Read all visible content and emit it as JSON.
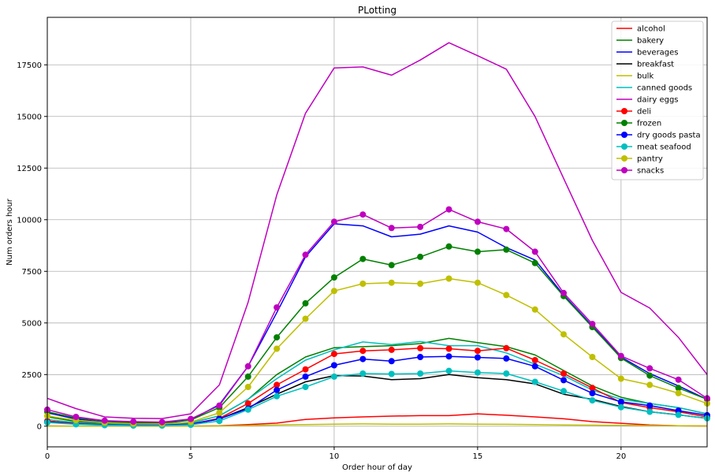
{
  "chart_data": {
    "type": "line",
    "title": "PLotting",
    "xlabel": "Order hour of day",
    "ylabel": "Num orders hour",
    "xlim": [
      0,
      23
    ],
    "ylim": [
      -1000,
      19800
    ],
    "x": [
      0,
      1,
      2,
      3,
      4,
      5,
      6,
      7,
      8,
      9,
      10,
      11,
      12,
      13,
      14,
      15,
      16,
      17,
      18,
      19,
      20,
      21,
      22,
      23
    ],
    "x_ticks": [
      0,
      5,
      10,
      15,
      20
    ],
    "x_tick_labels": [
      "0",
      "5",
      "10",
      "15",
      "20"
    ],
    "y_ticks": [
      0,
      2500,
      5000,
      7500,
      10000,
      12500,
      15000,
      17500
    ],
    "y_tick_labels": [
      "0",
      "2500",
      "5000",
      "7500",
      "10000",
      "12500",
      "15000",
      "17500"
    ],
    "grid": true,
    "legend_position": "top-right",
    "series": [
      {
        "name": "alcohol",
        "color": "#ff0000",
        "marker": false,
        "values": [
          10,
          5,
          3,
          2,
          2,
          5,
          20,
          80,
          150,
          330,
          400,
          450,
          490,
          510,
          510,
          600,
          530,
          450,
          360,
          220,
          140,
          60,
          20,
          10
        ]
      },
      {
        "name": "bakery",
        "color": "#008000",
        "marker": false,
        "values": [
          450,
          230,
          130,
          100,
          90,
          160,
          500,
          1300,
          2500,
          3350,
          3800,
          3850,
          3900,
          4000,
          4250,
          4050,
          3850,
          3450,
          2700,
          1950,
          1400,
          1100,
          900,
          600
        ]
      },
      {
        "name": "beverages",
        "color": "#0000ff",
        "marker": false,
        "values": [
          650,
          350,
          200,
          140,
          130,
          300,
          1050,
          2900,
          5500,
          8200,
          9800,
          9700,
          9170,
          9300,
          9700,
          9400,
          8650,
          8050,
          6350,
          4850,
          3350,
          2550,
          1950,
          1300
        ]
      },
      {
        "name": "breakfast",
        "color": "#000000",
        "marker": false,
        "values": [
          250,
          130,
          70,
          50,
          50,
          100,
          350,
          900,
          1550,
          2150,
          2450,
          2430,
          2250,
          2300,
          2500,
          2350,
          2250,
          2050,
          1550,
          1300,
          950,
          700,
          550,
          380
        ]
      },
      {
        "name": "bulk",
        "color": "#bfbf00",
        "marker": false,
        "values": [
          5,
          3,
          2,
          1,
          1,
          3,
          10,
          30,
          60,
          80,
          100,
          110,
          100,
          100,
          110,
          100,
          90,
          80,
          60,
          50,
          40,
          30,
          20,
          10
        ]
      },
      {
        "name": "canned goods",
        "color": "#00bfbf",
        "marker": false,
        "values": [
          330,
          170,
          100,
          80,
          70,
          150,
          500,
          1300,
          2300,
          3200,
          3700,
          4080,
          3950,
          4100,
          3900,
          3900,
          3550,
          3000,
          2450,
          1750,
          1300,
          1100,
          900,
          600
        ]
      },
      {
        "name": "dairy eggs",
        "color": "#bf00bf",
        "marker": false,
        "values": [
          1350,
          850,
          450,
          380,
          370,
          600,
          2000,
          6000,
          11200,
          15150,
          17350,
          17400,
          17000,
          17730,
          18570,
          17940,
          17290,
          15000,
          12000,
          9000,
          6480,
          5720,
          4300,
          2500
        ]
      },
      {
        "name": "deli",
        "color": "#ff0000",
        "marker": true,
        "values": [
          250,
          130,
          70,
          50,
          50,
          100,
          380,
          1100,
          2000,
          2750,
          3500,
          3650,
          3700,
          3780,
          3750,
          3650,
          3780,
          3200,
          2550,
          1850,
          1150,
          900,
          700,
          450
        ]
      },
      {
        "name": "frozen",
        "color": "#008000",
        "marker": true,
        "values": [
          700,
          400,
          250,
          180,
          170,
          300,
          900,
          2400,
          4300,
          5950,
          7200,
          8100,
          7800,
          8200,
          8700,
          8450,
          8550,
          7900,
          6300,
          4800,
          3300,
          2450,
          1850,
          1300
        ]
      },
      {
        "name": "dry goods pasta",
        "color": "#0000ff",
        "marker": true,
        "values": [
          200,
          110,
          70,
          50,
          50,
          100,
          350,
          850,
          1750,
          2400,
          2950,
          3250,
          3150,
          3350,
          3380,
          3330,
          3280,
          2900,
          2230,
          1600,
          1180,
          1000,
          750,
          530
        ]
      },
      {
        "name": "meat seafood",
        "color": "#00bfbf",
        "marker": true,
        "values": [
          180,
          90,
          50,
          30,
          30,
          70,
          250,
          800,
          1450,
          1900,
          2400,
          2550,
          2530,
          2550,
          2680,
          2600,
          2550,
          2150,
          1700,
          1250,
          920,
          700,
          550,
          380
        ]
      },
      {
        "name": "pantry",
        "color": "#bfbf00",
        "marker": true,
        "values": [
          500,
          290,
          170,
          120,
          110,
          200,
          650,
          1900,
          3750,
          5200,
          6550,
          6900,
          6950,
          6900,
          7150,
          6950,
          6350,
          5650,
          4450,
          3350,
          2300,
          2000,
          1600,
          1100
        ]
      },
      {
        "name": "snacks",
        "color": "#bf00bf",
        "marker": true,
        "values": [
          800,
          450,
          270,
          220,
          200,
          350,
          1000,
          2900,
          5750,
          8300,
          9900,
          10250,
          9600,
          9650,
          10500,
          9900,
          9550,
          8450,
          6450,
          4950,
          3400,
          2800,
          2250,
          1350
        ]
      }
    ]
  }
}
